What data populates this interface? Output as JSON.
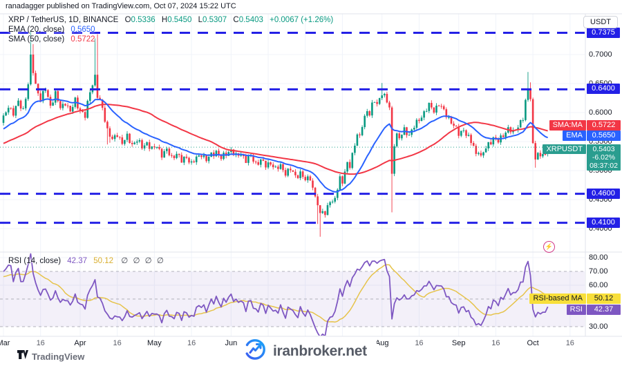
{
  "banner": {
    "text": "ranadagger published on TradingView.com, Oct 07, 2024 15:22 UTC"
  },
  "header": {
    "symbol": "XRP / TetherUS, 1D, BINANCE",
    "o_label": "O",
    "o": "0.5336",
    "h_label": "H",
    "h": "0.5450",
    "l_label": "L",
    "l": "0.5307",
    "c_label": "C",
    "c": "0.5403",
    "change": "+0.0067 (+1.26%)",
    "ema_label": "EMA (20, close)",
    "ema_value": "0.5650",
    "sma_label": "SMA (50, close)",
    "sma_value": "0.5722"
  },
  "rsi_legend": {
    "title": "RSI (14, close)",
    "value": "42.37",
    "ma_value": "50.12",
    "extra": "∅ ∅ ∅ ∅"
  },
  "axis": {
    "currency": "USDT",
    "sma_tag": "SMA:MA",
    "sma_value": "0.5722",
    "ema_tag": "EMA",
    "ema_value": "0.5650",
    "last_tag": "XRPUSDT",
    "last_price": "0.5403",
    "last_change": "-6.02%",
    "countdown": "08:37:02",
    "rsi_ma_tag": "RSI-based MA",
    "rsi_ma_value": "50.12",
    "rsi_tag": "RSI",
    "rsi_value": "42.37"
  },
  "footer": {
    "tradingview": "TradingView",
    "watermark": "iranbroker.net"
  },
  "colors": {
    "up": "#089981",
    "down": "#F23645",
    "ema": "#2962FF",
    "sma": "#F23645",
    "level_blue": "#2320E6",
    "rsi": "#7E57C2",
    "rsi_ma": "#e6c34a",
    "grid": "#f0f3fa",
    "divider": "#e0e3eb",
    "text": "#131722"
  },
  "chart_data": {
    "type": "candlestick",
    "title": "XRP / TetherUS, 1D, BINANCE",
    "legend_position": "top-left",
    "grid": true,
    "x_axis": {
      "start": "Mar 2024",
      "end": "Oct 2024",
      "labels": [
        {
          "text": "Mar",
          "day": 0
        },
        {
          "text": "16",
          "day": 15
        },
        {
          "text": "Apr",
          "day": 31
        },
        {
          "text": "16",
          "day": 46
        },
        {
          "text": "May",
          "day": 61
        },
        {
          "text": "16",
          "day": 76
        },
        {
          "text": "Jun",
          "day": 92
        },
        {
          "text": "16",
          "day": 107
        },
        {
          "text": "Jul",
          "day": 122
        },
        {
          "text": "16",
          "day": 137
        },
        {
          "text": "Aug",
          "day": 153
        },
        {
          "text": "16",
          "day": 168
        },
        {
          "text": "Sep",
          "day": 184
        },
        {
          "text": "16",
          "day": 199
        },
        {
          "text": "Oct",
          "day": 214
        },
        {
          "text": "16",
          "day": 229
        }
      ]
    },
    "y_axis": {
      "unit": "USDT",
      "ticks": [
        0.7,
        0.65,
        0.6,
        0.55,
        0.5,
        0.45,
        0.4
      ],
      "range": [
        0.378,
        0.755
      ]
    },
    "levels": [
      0.7375,
      0.64,
      0.46,
      0.41
    ],
    "last": {
      "price": 0.5403,
      "change_pct": -6.02,
      "countdown": "08:37:02"
    },
    "ohlc_today": {
      "o": 0.5336,
      "h": 0.545,
      "l": 0.5307,
      "c": 0.5403,
      "change": "+0.0067 (+1.26%)"
    },
    "indicators": {
      "ema": {
        "period": 20,
        "value": 0.565
      },
      "sma": {
        "period": 50,
        "value": 0.5722
      },
      "rsi": {
        "period": 14,
        "value": 42.37,
        "bands": [
          70,
          50,
          30
        ],
        "ticks": [
          80,
          70,
          60,
          30
        ],
        "range": [
          23,
          84
        ]
      },
      "rsi_ma": {
        "period": 14,
        "value": 50.12
      }
    },
    "close_keypoints": [
      [
        0,
        0.59
      ],
      [
        2,
        0.612
      ],
      [
        4,
        0.598
      ],
      [
        6,
        0.618
      ],
      [
        8,
        0.605
      ],
      [
        10,
        0.648
      ],
      [
        11,
        0.695
      ],
      [
        12,
        0.672
      ],
      [
        13,
        0.648
      ],
      [
        15,
        0.622
      ],
      [
        17,
        0.641
      ],
      [
        19,
        0.612
      ],
      [
        21,
        0.632
      ],
      [
        23,
        0.608
      ],
      [
        25,
        0.618
      ],
      [
        27,
        0.6
      ],
      [
        29,
        0.622
      ],
      [
        31,
        0.603
      ],
      [
        33,
        0.593
      ],
      [
        35,
        0.638
      ],
      [
        37,
        0.662
      ],
      [
        38,
        0.628
      ],
      [
        40,
        0.608
      ],
      [
        42,
        0.57
      ],
      [
        44,
        0.552
      ],
      [
        46,
        0.563
      ],
      [
        48,
        0.548
      ],
      [
        50,
        0.558
      ],
      [
        52,
        0.545
      ],
      [
        54,
        0.553
      ],
      [
        56,
        0.54
      ],
      [
        58,
        0.548
      ],
      [
        60,
        0.537
      ],
      [
        62,
        0.542
      ],
      [
        64,
        0.528
      ],
      [
        66,
        0.535
      ],
      [
        68,
        0.522
      ],
      [
        70,
        0.53
      ],
      [
        72,
        0.516
      ],
      [
        74,
        0.524
      ],
      [
        76,
        0.512
      ],
      [
        78,
        0.521
      ],
      [
        80,
        0.529
      ],
      [
        82,
        0.518
      ],
      [
        84,
        0.527
      ],
      [
        86,
        0.533
      ],
      [
        88,
        0.521
      ],
      [
        90,
        0.529
      ],
      [
        92,
        0.536
      ],
      [
        94,
        0.524
      ],
      [
        96,
        0.529
      ],
      [
        98,
        0.518
      ],
      [
        100,
        0.524
      ],
      [
        102,
        0.512
      ],
      [
        104,
        0.518
      ],
      [
        106,
        0.508
      ],
      [
        108,
        0.514
      ],
      [
        110,
        0.502
      ],
      [
        112,
        0.508
      ],
      [
        114,
        0.496
      ],
      [
        116,
        0.502
      ],
      [
        118,
        0.49
      ],
      [
        120,
        0.496
      ],
      [
        122,
        0.483
      ],
      [
        124,
        0.488
      ],
      [
        125,
        0.47
      ],
      [
        126,
        0.455
      ],
      [
        127,
        0.442
      ],
      [
        128,
        0.421
      ],
      [
        129,
        0.433
      ],
      [
        130,
        0.425
      ],
      [
        131,
        0.439
      ],
      [
        132,
        0.449
      ],
      [
        133,
        0.441
      ],
      [
        134,
        0.453
      ],
      [
        135,
        0.47
      ],
      [
        136,
        0.488
      ],
      [
        137,
        0.482
      ],
      [
        138,
        0.495
      ],
      [
        139,
        0.512
      ],
      [
        140,
        0.508
      ],
      [
        141,
        0.528
      ],
      [
        142,
        0.547
      ],
      [
        143,
        0.562
      ],
      [
        144,
        0.556
      ],
      [
        145,
        0.578
      ],
      [
        146,
        0.592
      ],
      [
        147,
        0.605
      ],
      [
        148,
        0.598
      ],
      [
        149,
        0.612
      ],
      [
        150,
        0.62
      ],
      [
        151,
        0.613
      ],
      [
        152,
        0.625
      ],
      [
        153,
        0.635
      ],
      [
        154,
        0.628
      ],
      [
        155,
        0.618
      ],
      [
        156,
        0.608
      ],
      [
        157,
        0.492
      ],
      [
        158,
        0.548
      ],
      [
        159,
        0.562
      ],
      [
        160,
        0.555
      ],
      [
        162,
        0.57
      ],
      [
        164,
        0.562
      ],
      [
        166,
        0.576
      ],
      [
        168,
        0.588
      ],
      [
        170,
        0.6
      ],
      [
        172,
        0.612
      ],
      [
        174,
        0.604
      ],
      [
        176,
        0.615
      ],
      [
        178,
        0.602
      ],
      [
        180,
        0.59
      ],
      [
        182,
        0.578
      ],
      [
        184,
        0.563
      ],
      [
        186,
        0.571
      ],
      [
        188,
        0.556
      ],
      [
        190,
        0.542
      ],
      [
        191,
        0.528
      ],
      [
        192,
        0.536
      ],
      [
        193,
        0.522
      ],
      [
        194,
        0.531
      ],
      [
        196,
        0.546
      ],
      [
        198,
        0.556
      ],
      [
        200,
        0.55
      ],
      [
        202,
        0.562
      ],
      [
        204,
        0.572
      ],
      [
        206,
        0.565
      ],
      [
        208,
        0.578
      ],
      [
        210,
        0.59
      ],
      [
        211,
        0.618
      ],
      [
        212,
        0.64
      ],
      [
        213,
        0.628
      ],
      [
        214,
        0.545
      ],
      [
        215,
        0.522
      ],
      [
        216,
        0.529
      ],
      [
        217,
        0.52
      ],
      [
        218,
        0.533
      ],
      [
        219,
        0.527
      ],
      [
        220,
        0.5403
      ]
    ],
    "wick_overrides": [
      [
        11,
        "h",
        0.742
      ],
      [
        12,
        "h",
        0.718
      ],
      [
        37,
        "h",
        0.728
      ],
      [
        38,
        "h",
        0.735
      ],
      [
        42,
        "l",
        0.545
      ],
      [
        43,
        "l",
        0.548
      ],
      [
        127,
        "l",
        0.408
      ],
      [
        128,
        "l",
        0.386
      ],
      [
        153,
        "h",
        0.651
      ],
      [
        157,
        "l",
        0.428
      ],
      [
        212,
        "h",
        0.67
      ],
      [
        213,
        "h",
        0.652
      ],
      [
        215,
        "l",
        0.505
      ]
    ],
    "prehistory": {
      "days": 50,
      "start": 0.505,
      "end": 0.585
    },
    "wiggle_amp": 0.0042
  }
}
